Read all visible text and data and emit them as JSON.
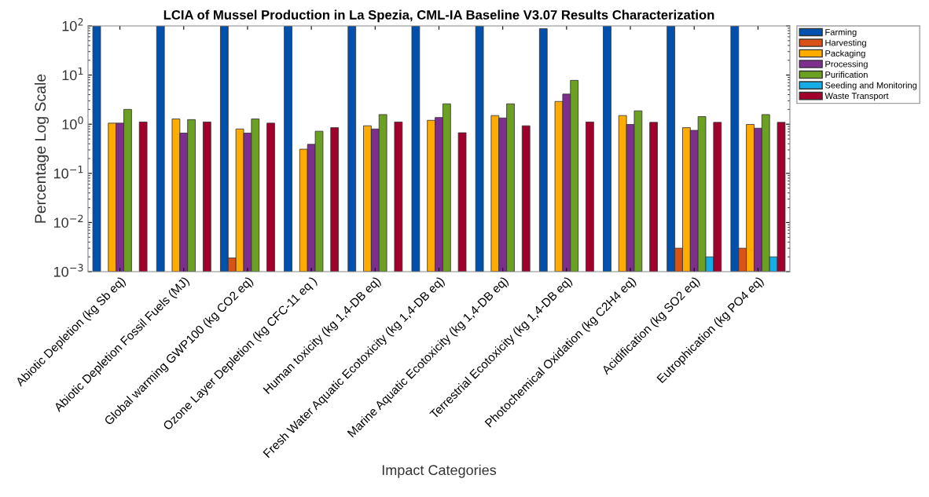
{
  "chart_data": {
    "type": "bar",
    "title": "LCIA of Mussel Production in La Spezia, CML-IA Baseline V3.07 Results Characterization",
    "xlabel": "Impact Categories",
    "ylabel": "Percentage Log Scale",
    "categories": [
      "Abiotic Depletion (kg Sb eq)",
      "Abiotic Depletion Fossil Fuels (MJ)",
      "Global warming GWP100 (kg CO2 eq)",
      "Ozone Layer Depletion (kg CFC-11 eq )",
      "Human toxicity (kg 1,4-DB eq)",
      "Fresh Water Aquatic Ecotoxicity (kg 1,4-DB eq)",
      "Marine Aquatic Ecotoxicity (kg 1,4-DB eq)",
      "Terrestrial Ecotoxicity (kg 1,4-DB eq)",
      "Photochemical Oxidation (kg C2H4 eq)",
      "Acidification (kg SO2 eq)",
      "Eutrophication (kg PO4 eq)"
    ],
    "series": [
      {
        "name": "Farming",
        "color": "#0050ae",
        "values": [
          100,
          100,
          100,
          100,
          100,
          100,
          100,
          88,
          100,
          100,
          100
        ]
      },
      {
        "name": "Harvesting",
        "color": "#d95319",
        "values": [
          null,
          null,
          0.0019,
          null,
          null,
          null,
          null,
          null,
          null,
          0.003,
          0.003
        ]
      },
      {
        "name": "Packaging",
        "color": "#ffab00",
        "values": [
          1.05,
          1.28,
          0.8,
          0.31,
          0.93,
          1.2,
          1.5,
          2.9,
          1.5,
          0.85,
          0.99
        ]
      },
      {
        "name": "Processing",
        "color": "#7e2f8e",
        "values": [
          1.05,
          0.66,
          0.66,
          0.39,
          0.8,
          1.37,
          1.34,
          4.1,
          0.99,
          0.75,
          0.83
        ]
      },
      {
        "name": "Purification",
        "color": "#6ba022",
        "values": [
          2.0,
          1.24,
          1.28,
          0.72,
          1.57,
          2.6,
          2.6,
          7.8,
          1.87,
          1.43,
          1.57
        ]
      },
      {
        "name": "Seeding and Monitoring",
        "color": "#16ace8",
        "values": [
          null,
          null,
          null,
          null,
          null,
          null,
          null,
          null,
          null,
          0.002,
          0.002
        ]
      },
      {
        "name": "Waste Transport",
        "color": "#a0002b",
        "values": [
          1.11,
          1.11,
          1.05,
          0.85,
          1.11,
          0.67,
          0.93,
          1.11,
          1.09,
          1.09,
          1.09
        ]
      }
    ],
    "log": "y",
    "ylim": [
      0.001,
      100
    ],
    "yticks": [
      {
        "value": 0.001,
        "label": "10$^{−3}$"
      },
      {
        "value": 0.01,
        "label": "10$^{−2}$"
      },
      {
        "value": 0.1,
        "label": "10$^{−1}$"
      },
      {
        "value": 1,
        "label": "10$^{0}$"
      },
      {
        "value": 10,
        "label": "10$^{1}$"
      },
      {
        "value": 100,
        "label": "10$^{2}$"
      }
    ],
    "grid": false,
    "legend": "top right"
  }
}
